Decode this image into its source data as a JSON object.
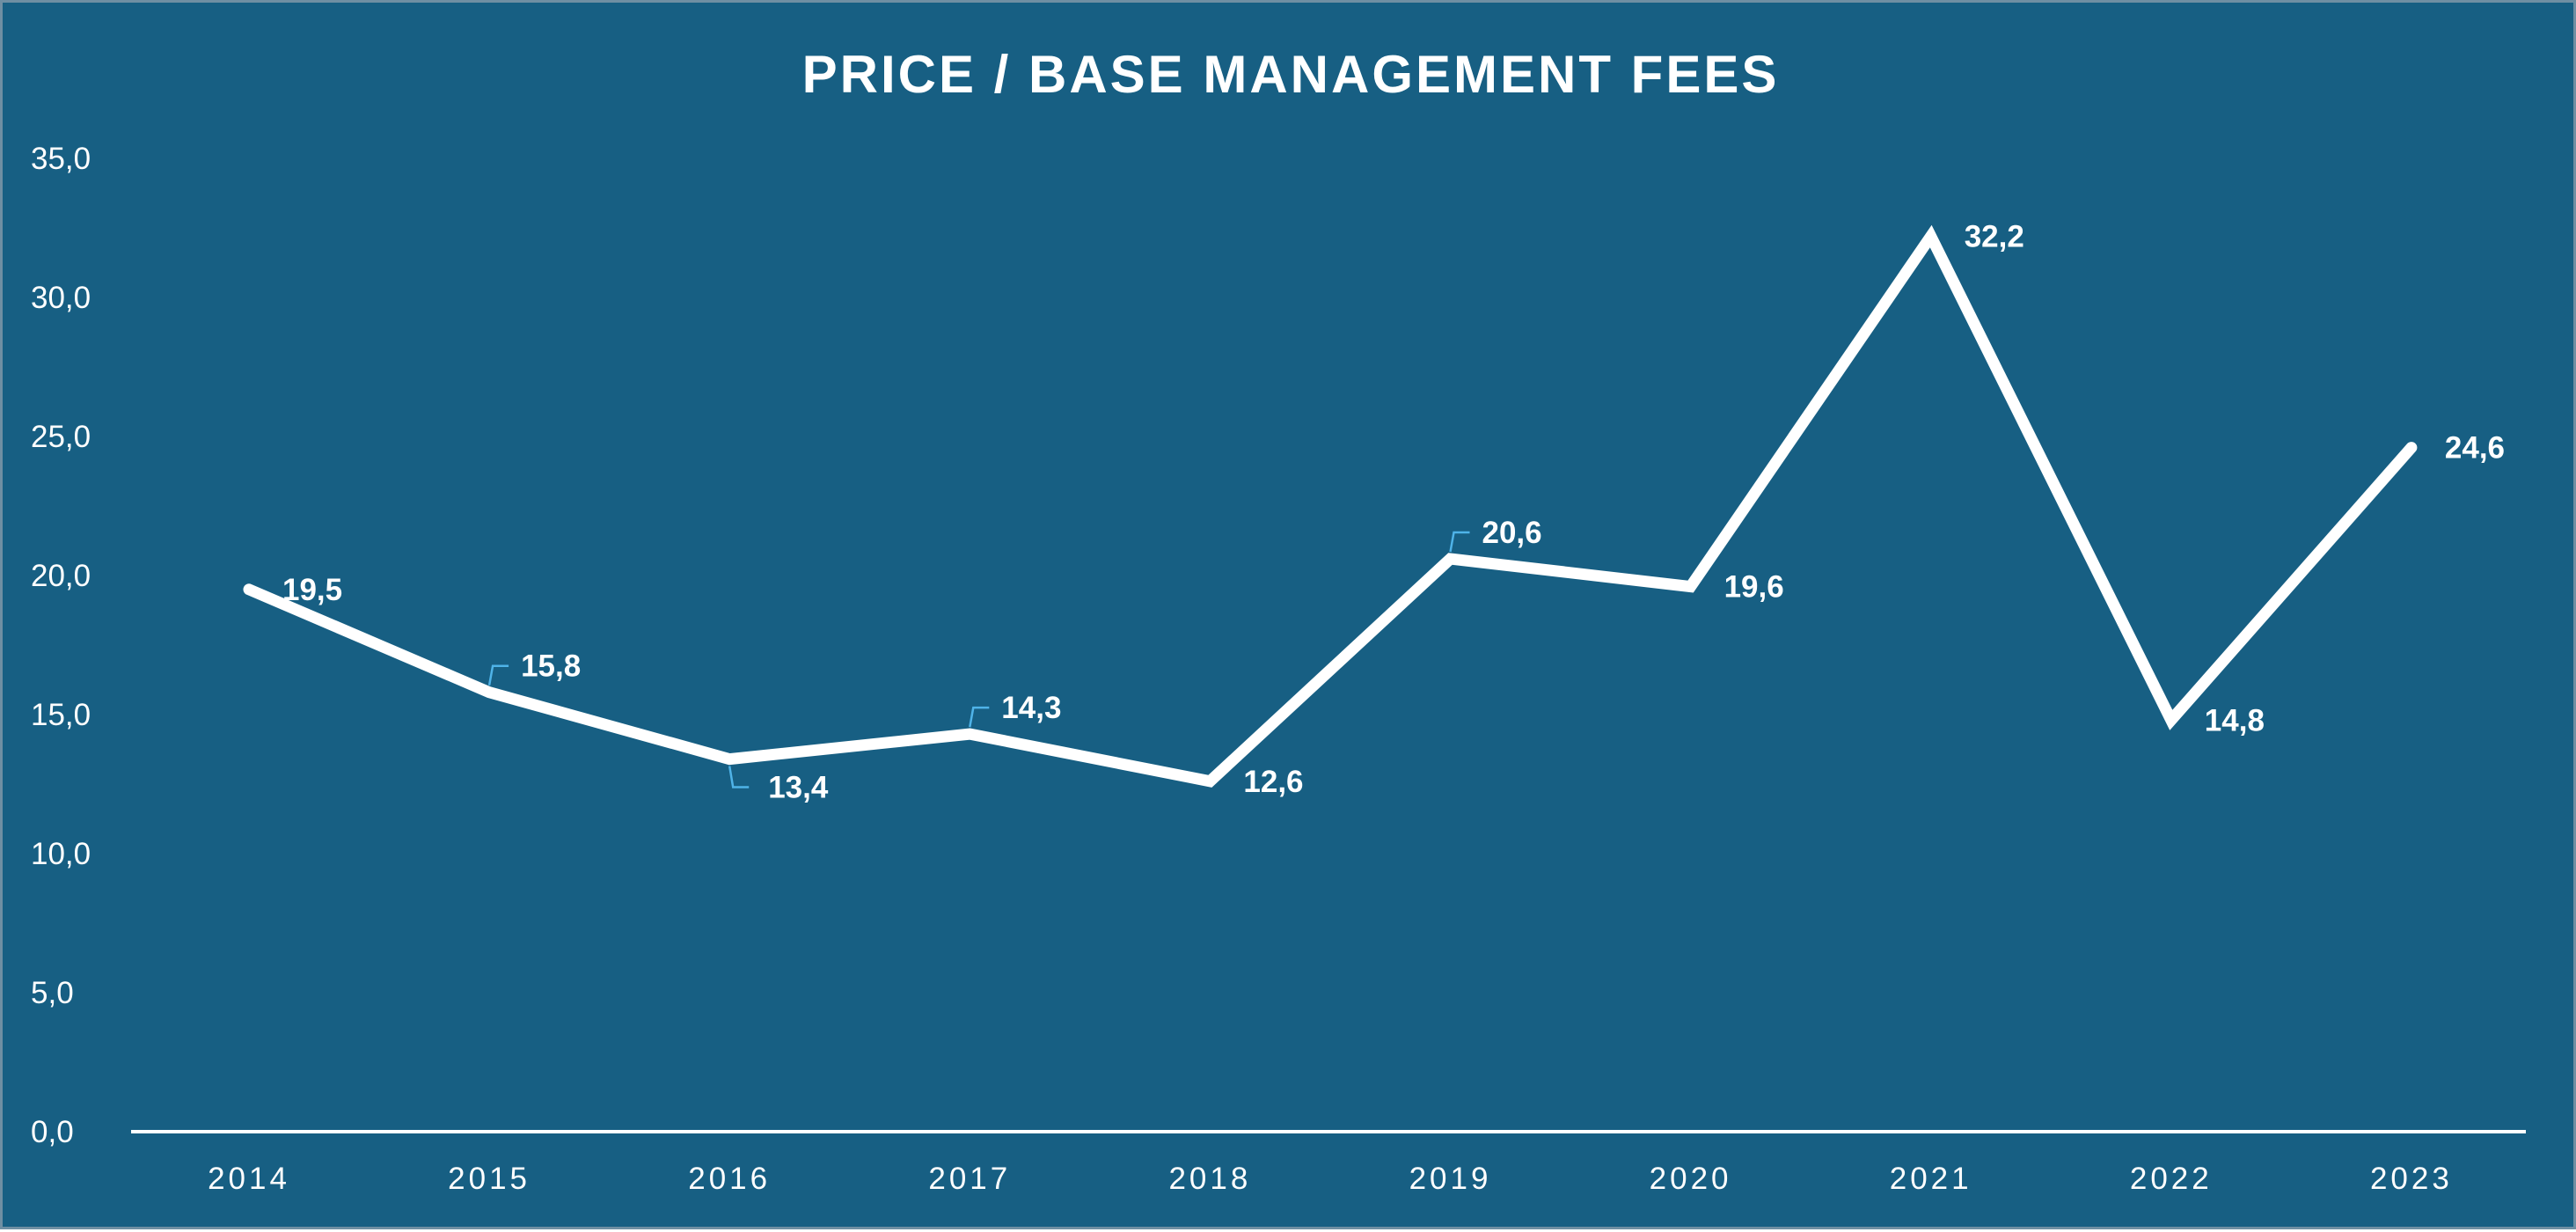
{
  "chart_data": {
    "type": "line",
    "title": "PRICE / BASE MANAGEMENT FEES",
    "xlabel": "",
    "ylabel": "",
    "categories": [
      "2014",
      "2015",
      "2016",
      "2017",
      "2018",
      "2019",
      "2020",
      "2021",
      "2022",
      "2023"
    ],
    "values": [
      19.5,
      15.8,
      13.4,
      14.3,
      12.6,
      20.6,
      19.6,
      32.2,
      14.8,
      24.6
    ],
    "data_labels": [
      "19,5",
      "15,8",
      "13,4",
      "14,3",
      "12,6",
      "20,6",
      "19,6",
      "32,2",
      "14,8",
      "24,6"
    ],
    "ylim": [
      0,
      35
    ],
    "y_ticks": [
      0,
      5,
      10,
      15,
      20,
      25,
      30,
      35
    ],
    "y_tick_labels": [
      "0,0",
      "5,0",
      "10,0",
      "15,0",
      "20,0",
      "25,0",
      "30,0",
      "35,0"
    ],
    "grid": false,
    "legend": "none",
    "drop_lines": true,
    "colors": {
      "background": "#175f83",
      "line": "#ffffff",
      "text": "#ffffff",
      "leader_line": "#4fb3e8"
    }
  }
}
